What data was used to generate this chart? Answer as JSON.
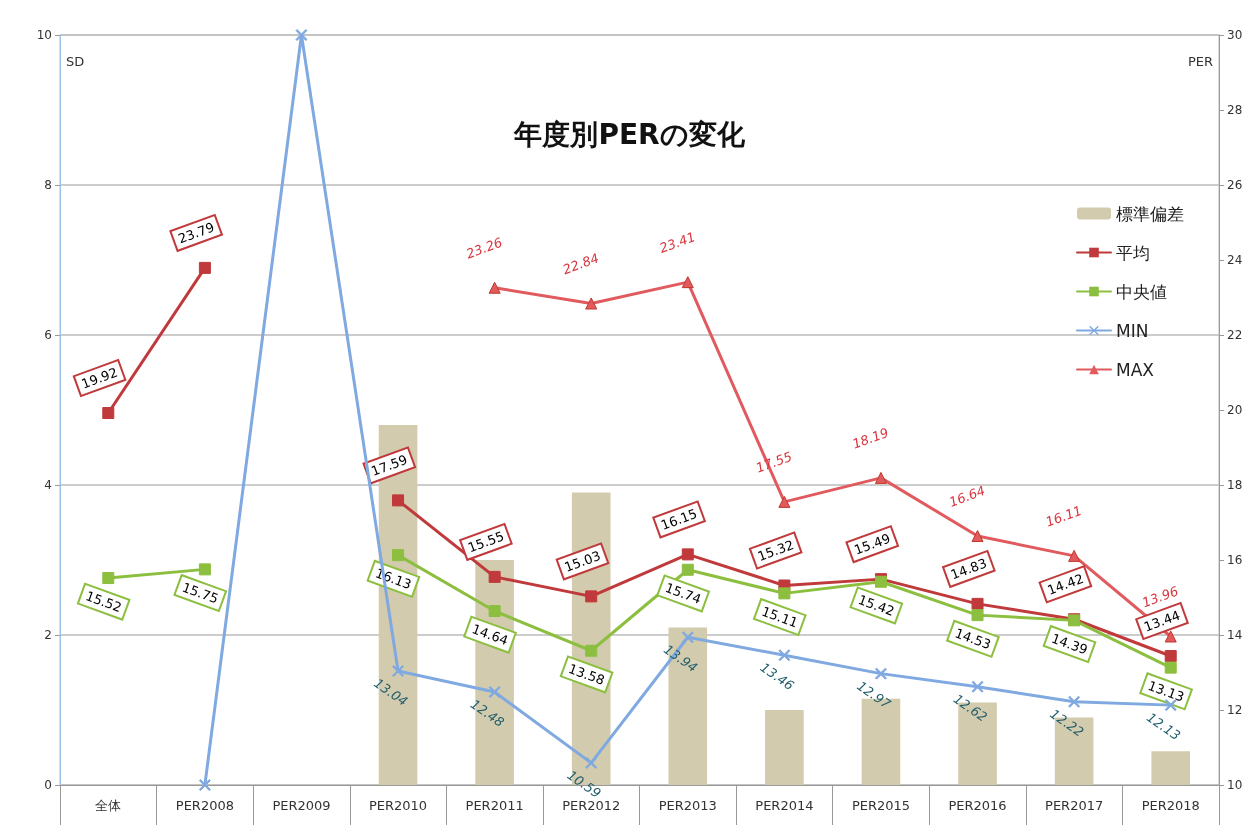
{
  "chart_data": {
    "type": "bar",
    "title": "年度別PERの変化",
    "ylabel": "SD",
    "y2label": "PER",
    "categories": [
      "全体",
      "PER2008",
      "PER2009",
      "PER2010",
      "PER2011",
      "PER2012",
      "PER2013",
      "PER2014",
      "PER2015",
      "PER2016",
      "PER2017",
      "PER2018"
    ],
    "series": [
      {
        "name": "標準偏差",
        "color": "#d3cbae",
        "values": [
          null,
          null,
          null,
          4.8,
          3.0,
          3.9,
          2.1,
          1.0,
          1.15,
          1.1,
          0.9,
          0.45
        ]
      },
      {
        "name": "平均",
        "type": "line",
        "axis": "y2",
        "marker": "square",
        "color": "#c0393b",
        "values": [
          19.92,
          23.79,
          null,
          17.59,
          15.55,
          15.03,
          16.15,
          15.32,
          15.49,
          14.83,
          14.42,
          13.44
        ],
        "value_labels": [
          "19.92",
          "23.79",
          null,
          "17.59",
          "15.55",
          "15.03",
          "16.15",
          "15.32",
          "15.49",
          "14.83",
          "14.42",
          "13.44"
        ]
      },
      {
        "name": "中央値",
        "type": "line",
        "axis": "y2",
        "marker": "square",
        "color": "#8cbf3f",
        "values": [
          15.52,
          15.75,
          null,
          16.13,
          14.64,
          13.58,
          15.74,
          15.11,
          15.42,
          14.53,
          14.39,
          13.13
        ],
        "value_labels": [
          "15.52",
          "15.75",
          null,
          "16.13",
          "14.64",
          "13.58",
          "15.74",
          "15.11",
          "15.42",
          "14.53",
          "14.39",
          "13.13"
        ]
      },
      {
        "name": "MIN",
        "type": "line",
        "axis": "y2",
        "marker": "cross",
        "color": "#7fa9e0",
        "values": [
          null,
          10,
          30,
          13.04,
          12.48,
          10.59,
          13.94,
          13.46,
          12.97,
          12.62,
          12.22,
          12.13
        ],
        "value_labels": [
          null,
          null,
          null,
          "13.04",
          "12.48",
          "10.59",
          "13.94",
          "13.46",
          "12.97",
          "12.62",
          "12.22",
          "12.13"
        ]
      },
      {
        "name": "MAX",
        "type": "line",
        "axis": "y2",
        "marker": "triangle",
        "color": "#e05a5e",
        "values": [
          null,
          null,
          null,
          null,
          23.26,
          22.84,
          23.41,
          17.55,
          18.19,
          16.64,
          16.11,
          13.96
        ],
        "value_labels": [
          null,
          null,
          null,
          null,
          "23.26",
          "22.84",
          "23.41",
          "17.55",
          "18.19",
          "16.64",
          "16.11",
          "13.96"
        ]
      }
    ],
    "ylim": [
      0,
      10
    ],
    "yticks": [
      0,
      2,
      4,
      6,
      8,
      10
    ],
    "y2lim": [
      10,
      30
    ],
    "y2ticks": [
      10,
      12,
      14,
      16,
      18,
      20,
      22,
      24,
      26,
      28,
      30
    ],
    "grid": "y",
    "legend": "right"
  }
}
